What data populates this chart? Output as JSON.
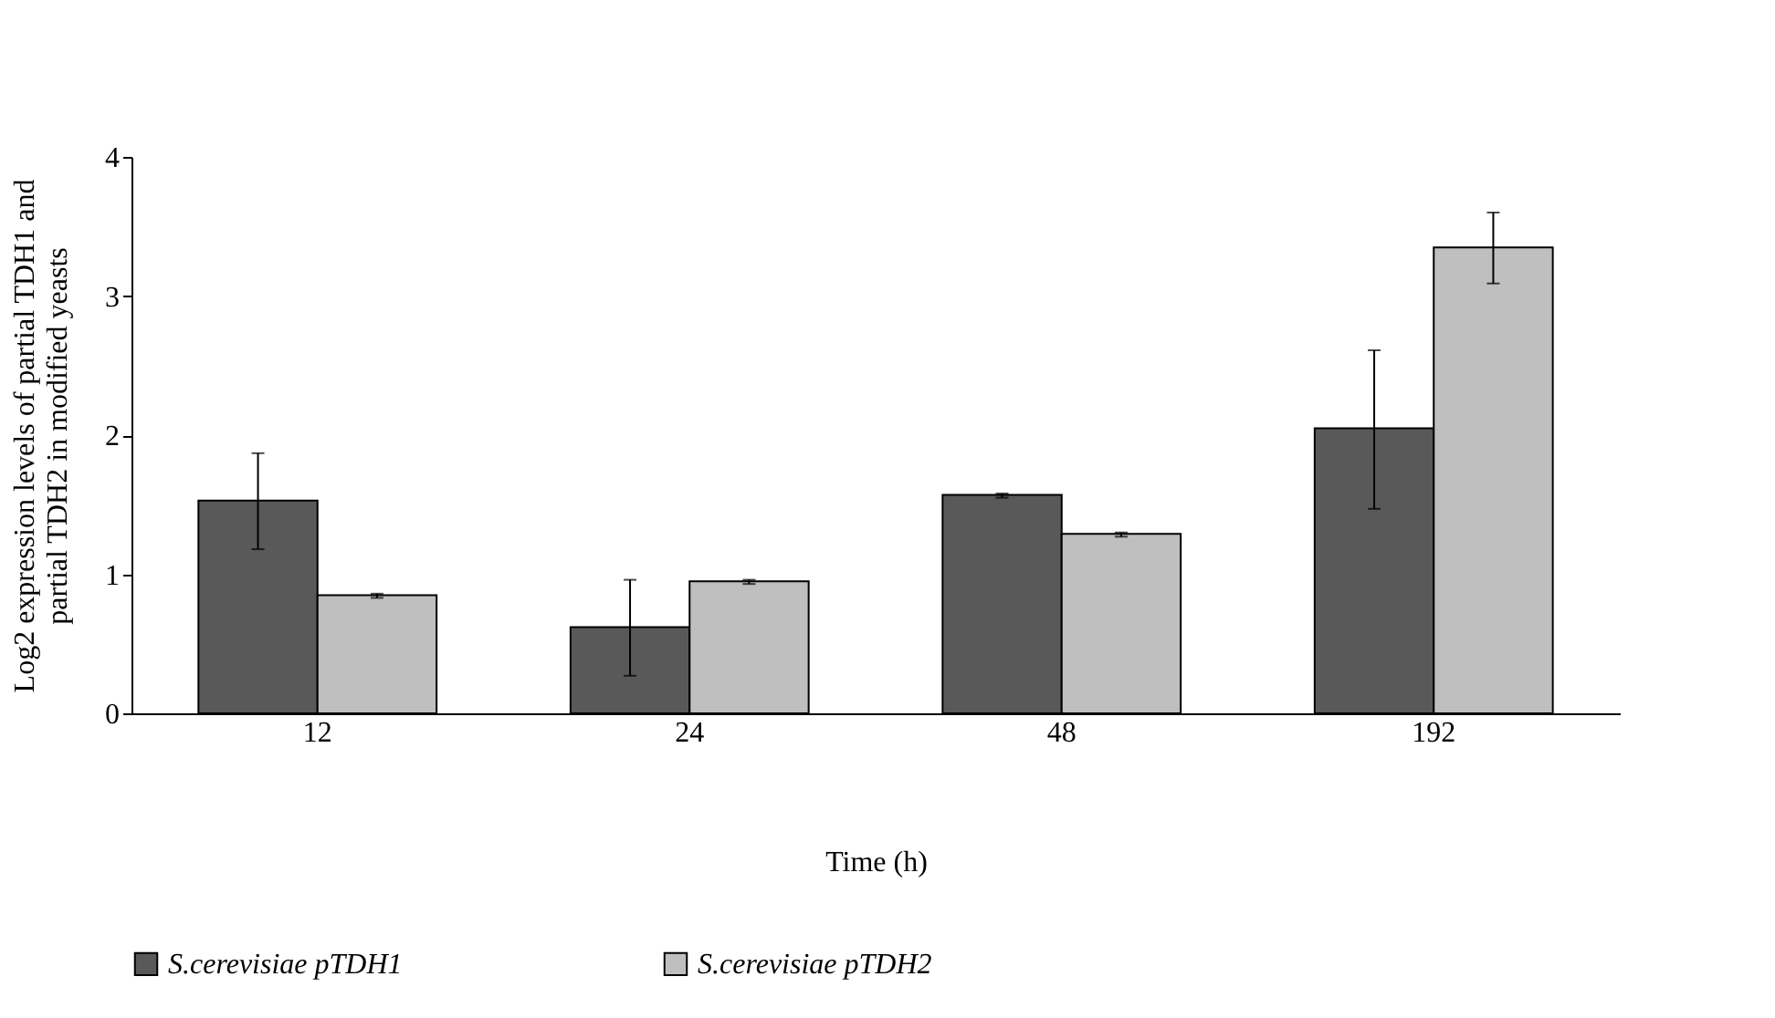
{
  "chart_data": {
    "type": "bar",
    "xlabel": "Time (h)",
    "ylabel": "Log2 expression levels of partial TDH1 and partial TDH2 in modified yeasts",
    "categories": [
      "12",
      "24",
      "48",
      "192"
    ],
    "series": [
      {
        "name": "S.cerevisiae pTDH1",
        "color": "#595959",
        "values": [
          1.53,
          0.62,
          1.57,
          2.05
        ],
        "errors": [
          [
            1.18,
            1.87
          ],
          [
            0.27,
            0.96
          ],
          [
            1.55,
            1.58
          ],
          [
            1.47,
            2.61
          ]
        ]
      },
      {
        "name": "S.cerevisiae pTDH2",
        "color": "#bfbfbf",
        "values": [
          0.85,
          0.95,
          1.29,
          3.35
        ],
        "errors": [
          [
            0.83,
            0.86
          ],
          [
            0.93,
            0.96
          ],
          [
            1.27,
            1.3
          ],
          [
            3.09,
            3.6
          ]
        ]
      }
    ],
    "ylim": [
      0,
      4
    ],
    "yticks": [
      0,
      1,
      2,
      3,
      4
    ],
    "grid": false,
    "legend": "bottom"
  }
}
